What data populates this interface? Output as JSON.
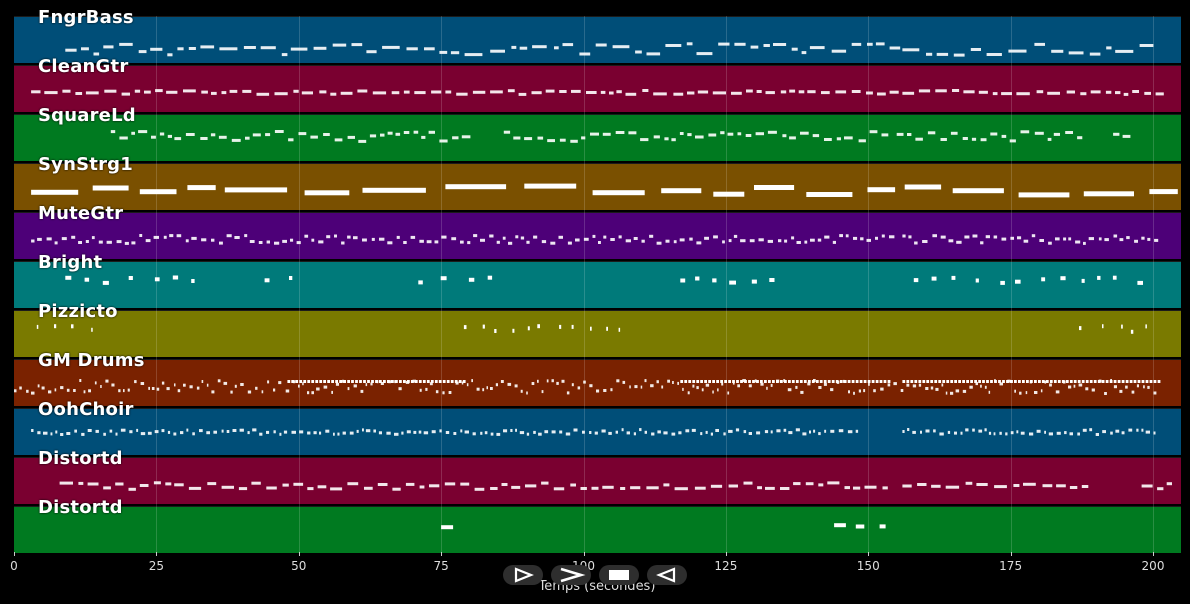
{
  "chart_data": {
    "type": "piano-roll",
    "xlabel": "Temps (secondes)",
    "xlim": [
      0,
      205
    ],
    "x_ticks": [
      0,
      25,
      50,
      75,
      100,
      125,
      150,
      175,
      200
    ],
    "grid": true,
    "tracks": [
      {
        "name": "FngrBass",
        "color": "#004e78"
      },
      {
        "name": "CleanGtr",
        "color": "#7a0030"
      },
      {
        "name": "SquareLd",
        "color": "#007a20"
      },
      {
        "name": "SynStrg1",
        "color": "#7a5000"
      },
      {
        "name": "MuteGtr",
        "color": "#4d0078"
      },
      {
        "name": "Bright",
        "color": "#007a7a"
      },
      {
        "name": "Pizzicto",
        "color": "#7a7a00"
      },
      {
        "name": "GM Drums",
        "color": "#7a2200"
      },
      {
        "name": "OohChoir",
        "color": "#004e78"
      },
      {
        "name": "Distortd",
        "color": "#7a0030"
      },
      {
        "name": "Distortd",
        "color": "#007a20"
      }
    ]
  },
  "controls": [
    {
      "name": "play-button",
      "icon": "play-icon"
    },
    {
      "name": "forward-button",
      "icon": "fast-forward-icon"
    },
    {
      "name": "stop-button",
      "icon": "stop-icon"
    },
    {
      "name": "rewind-button",
      "icon": "rewind-icon"
    }
  ]
}
